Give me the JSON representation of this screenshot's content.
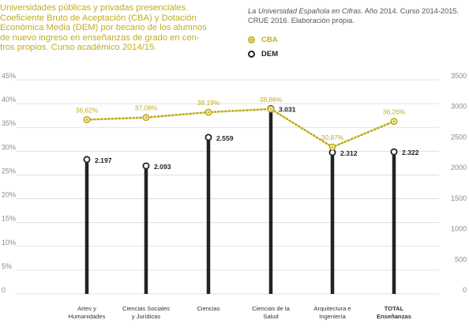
{
  "title_lines": [
    "Universidades públicas y privadas presenciales.",
    "Coeficiente Bruto de Aceptación (CBA) y Dotación",
    "Económica Media (DEM) por becario de los alumnos",
    "de nuevo ingreso en enseñanzas de grado en cen-",
    "tros propios. Curso académico 2014/15."
  ],
  "source": {
    "italic": "La Universidad Española en Cifras.",
    "rest_line1": " Año 2014. Curso 2014-2015.",
    "line2": "CRUE 2016. Elaboración propia."
  },
  "colors": {
    "cba": "#c3ad1e",
    "dem": "#222222",
    "grid": "#d9d9d9",
    "axis_text": "#8a8a8a"
  },
  "legend": [
    {
      "label": "CBA",
      "color": "#c3ad1e",
      "style": "ring-dot"
    },
    {
      "label": "DEM",
      "color": "#222222",
      "style": "ring"
    }
  ],
  "chart_data": {
    "type": "line",
    "categories": [
      [
        "Artes y",
        "Humanidades"
      ],
      [
        "Ciencias Sociales",
        "y Jurídicas"
      ],
      [
        "Ciencias"
      ],
      [
        "Ciencias de la",
        "Salud"
      ],
      [
        "Arquitectura e",
        "Ingeniería"
      ],
      [
        "TOTAL",
        "Enseñanzas"
      ]
    ],
    "bold_category_index": 5,
    "left_axis": {
      "ylim": [
        0,
        45
      ],
      "ticks": [
        0,
        5,
        10,
        15,
        20,
        25,
        30,
        35,
        40,
        45
      ],
      "tick_labels": [
        "0",
        "5%",
        "10%",
        "15%",
        "20%",
        "25%",
        "30%",
        "35%",
        "40%",
        "45%"
      ]
    },
    "right_axis": {
      "ylim": [
        0,
        3500
      ],
      "ticks": [
        0,
        500,
        1000,
        1500,
        2000,
        2500,
        3000,
        3500
      ],
      "tick_labels": [
        "0",
        "500",
        "1000",
        "1500",
        "2000",
        "2500",
        "3000",
        "3500"
      ]
    },
    "grid": true,
    "series": [
      {
        "name": "CBA",
        "axis": "left",
        "render": "dotted-line",
        "values": [
          36.62,
          37.08,
          38.19,
          38.86,
          30.87,
          36.26
        ],
        "labels": [
          "36,62%",
          "37,08%",
          "38,19%",
          "38,86%",
          "30,87%",
          "36,26%"
        ]
      },
      {
        "name": "DEM",
        "axis": "right",
        "render": "lollipop",
        "values": [
          2197,
          2093,
          2559,
          3031,
          2312,
          2322
        ],
        "labels": [
          "2.197",
          "2.093",
          "2.559",
          "3.031",
          "2.312",
          "2.322"
        ]
      }
    ]
  }
}
